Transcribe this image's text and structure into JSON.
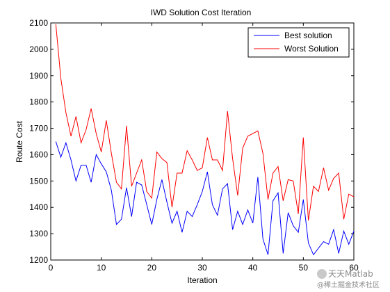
{
  "chart_data": {
    "type": "line",
    "title": "IWD Solution Cost Iteration",
    "xlabel": "Iteration",
    "ylabel": "Route Cost",
    "xlim": [
      0,
      60
    ],
    "ylim": [
      1200,
      2100
    ],
    "xticks": [
      0,
      10,
      20,
      30,
      40,
      50,
      60
    ],
    "yticks": [
      1200,
      1300,
      1400,
      1500,
      1600,
      1700,
      1800,
      1900,
      2000,
      2100
    ],
    "grid": false,
    "legend_position": "top-right",
    "x": [
      1,
      2,
      3,
      4,
      5,
      6,
      7,
      8,
      9,
      10,
      11,
      12,
      13,
      14,
      15,
      16,
      17,
      18,
      19,
      20,
      21,
      22,
      23,
      24,
      25,
      26,
      27,
      28,
      29,
      30,
      31,
      32,
      33,
      34,
      35,
      36,
      37,
      38,
      39,
      40,
      41,
      42,
      43,
      44,
      45,
      46,
      47,
      48,
      49,
      50,
      51,
      52,
      53,
      54,
      55,
      56,
      57,
      58,
      59,
      60
    ],
    "series": [
      {
        "name": "Best solution",
        "color": "#0000ff",
        "values": [
          1650,
          1590,
          1645,
          1580,
          1500,
          1560,
          1560,
          1495,
          1600,
          1565,
          1535,
          1465,
          1335,
          1355,
          1475,
          1365,
          1495,
          1485,
          1410,
          1335,
          1430,
          1505,
          1420,
          1340,
          1385,
          1305,
          1385,
          1365,
          1410,
          1460,
          1535,
          1410,
          1370,
          1470,
          1490,
          1315,
          1385,
          1335,
          1390,
          1340,
          1515,
          1280,
          1220,
          1425,
          1455,
          1225,
          1380,
          1330,
          1305,
          1430,
          1265,
          1220,
          1245,
          1270,
          1260,
          1315,
          1225,
          1310,
          1260,
          1310
        ]
      },
      {
        "name": "Worst Solution",
        "color": "#ff0000",
        "values": [
          2095,
          1890,
          1760,
          1670,
          1745,
          1645,
          1695,
          1775,
          1680,
          1610,
          1730,
          1605,
          1495,
          1470,
          1710,
          1480,
          1530,
          1580,
          1460,
          1435,
          1610,
          1585,
          1570,
          1400,
          1530,
          1530,
          1615,
          1580,
          1540,
          1550,
          1665,
          1580,
          1580,
          1540,
          1765,
          1585,
          1445,
          1625,
          1670,
          1680,
          1690,
          1605,
          1430,
          1530,
          1555,
          1425,
          1505,
          1500,
          1375,
          1665,
          1350,
          1480,
          1460,
          1550,
          1465,
          1510,
          1530,
          1355,
          1450,
          1440
        ]
      }
    ]
  },
  "watermark": {
    "line1": "天天Matlab",
    "line2": "@稀土掘金技术社区"
  }
}
